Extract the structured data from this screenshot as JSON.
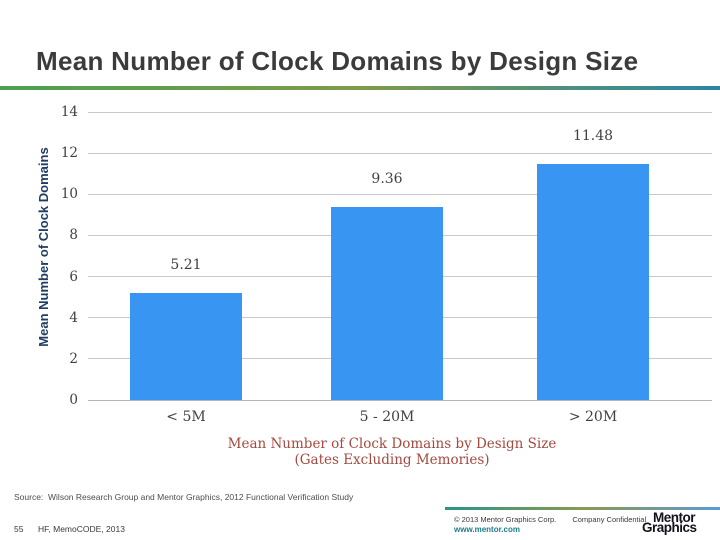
{
  "page": {
    "title": "Mean Number of Clock Domains by Design Size"
  },
  "chart_data": {
    "type": "bar",
    "categories": [
      "< 5M",
      "5 - 20M",
      "> 20M"
    ],
    "values": [
      5.21,
      9.36,
      11.48
    ],
    "value_labels": [
      "5.21",
      "9.36",
      "11.48"
    ],
    "ylabel": "Mean Number of Clock Domains",
    "yticks": [
      14,
      12,
      10,
      8,
      6,
      4,
      2,
      0
    ],
    "ylim": [
      0,
      14
    ],
    "grid": true,
    "legend": "none",
    "bar_color": "#3896f2",
    "caption_line1": "Mean Number of Clock Domains by Design Size",
    "caption_line2": "(Gates Excluding Memories)"
  },
  "footer": {
    "source": "Source:  Wilson Research Group and Mentor Graphics, 2012 Functional Verification Study",
    "slide_number": "55",
    "footnote": "HF, MemoCODE, 2013",
    "copyright": "© 2013 Mentor Graphics Corp.",
    "confidential": "Company Confidential",
    "website": "www.mentor.com",
    "logo_line1": "Mentor",
    "logo_line2": "Graphics"
  }
}
